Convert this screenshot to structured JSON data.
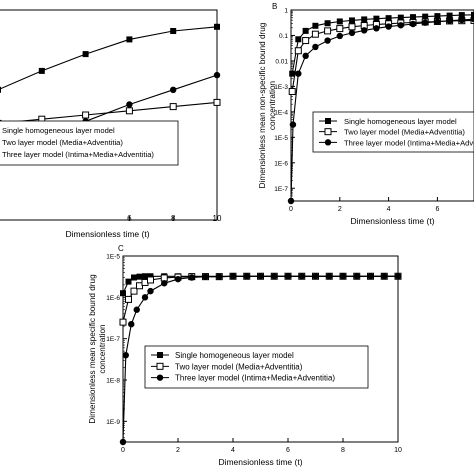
{
  "chart_data": [
    {
      "id": "A",
      "type": "line",
      "panel_label": "",
      "title": "",
      "xlabel": "Dimensionless time (t)",
      "ylabel": "",
      "xlim": [
        0,
        10
      ],
      "ylim": [
        0,
        1
      ],
      "xticks": [
        6,
        8,
        10
      ],
      "yscale": "linear",
      "legend": {
        "placement": "center-left",
        "entries": [
          "Single homogeneous layer model",
          "Two layer model (Media+Adventitia)",
          "Three layer model (Intima+Media+Adventitia)"
        ]
      },
      "series": [
        {
          "name": "Single homogeneous layer model",
          "marker": "square-filled",
          "x": [
            0,
            2,
            4,
            6,
            8,
            10
          ],
          "y": [
            0.62,
            0.71,
            0.79,
            0.86,
            0.9,
            0.92
          ]
        },
        {
          "name": "Two layer model (Media+Adventitia)",
          "marker": "square-open",
          "x": [
            0,
            2,
            4,
            6,
            8,
            10
          ],
          "y": [
            0.46,
            0.48,
            0.5,
            0.52,
            0.54,
            0.56
          ]
        },
        {
          "name": "Three layer model (Intima+Media+Adventitia)",
          "marker": "circle-filled",
          "x": [
            0,
            2,
            4,
            6,
            8,
            10
          ],
          "y": [
            0.34,
            0.4,
            0.47,
            0.55,
            0.62,
            0.69
          ]
        }
      ]
    },
    {
      "id": "B",
      "type": "line",
      "panel_label": "B",
      "title": "",
      "xlabel": "Dimensionless time (t)",
      "ylabel": "Dimensionless mean non-specific bound drug concentration",
      "xlim": [
        0,
        7.5
      ],
      "ylim_exp": [
        -7.5,
        0
      ],
      "yscale": "log",
      "xticks": [
        0,
        2,
        4,
        6
      ],
      "yticks": [
        "1",
        "0.1",
        "0.01",
        "1E-3",
        "1E-4",
        "1E-5",
        "1E-6",
        "1E-7"
      ],
      "legend": {
        "placement": "bottom-right",
        "entries": [
          "Single homogeneous layer model",
          "Two layer model (Media+Adventitia)",
          "Three layer model (Intima+Media+Adventitia)"
        ]
      },
      "series": [
        {
          "name": "Single homogeneous layer model",
          "marker": "square-filled",
          "x": [
            0.05,
            0.3,
            0.6,
            1,
            1.5,
            2,
            2.5,
            3,
            3.5,
            4,
            4.5,
            5,
            5.5,
            6,
            6.5,
            7,
            7.5
          ],
          "y_exp": [
            -2.5,
            -1.15,
            -0.82,
            -0.62,
            -0.52,
            -0.45,
            -0.41,
            -0.37,
            -0.34,
            -0.32,
            -0.3,
            -0.28,
            -0.26,
            -0.24,
            -0.22,
            -0.2,
            -0.19
          ]
        },
        {
          "name": "Two layer model (Media+Adventitia)",
          "marker": "square-open",
          "x": [
            0.05,
            0.3,
            0.6,
            1,
            1.5,
            2,
            2.5,
            3,
            3.5,
            4,
            4.5,
            5,
            5.5,
            6,
            6.5,
            7,
            7.5
          ],
          "y_exp": [
            -3.2,
            -1.6,
            -1.2,
            -0.95,
            -0.82,
            -0.73,
            -0.66,
            -0.61,
            -0.57,
            -0.54,
            -0.51,
            -0.49,
            -0.47,
            -0.45,
            -0.43,
            -0.42,
            -0.41
          ]
        },
        {
          "name": "Three layer model (Intima+Media+Adventitia)",
          "marker": "circle-filled",
          "x": [
            0,
            0.08,
            0.3,
            0.6,
            1,
            1.5,
            2,
            2.5,
            3,
            3.5,
            4,
            4.5,
            5,
            5.5,
            6,
            6.5,
            7,
            7.5
          ],
          "y_exp": [
            -7.5,
            -4.5,
            -2.5,
            -1.8,
            -1.45,
            -1.2,
            -1.02,
            -0.9,
            -0.8,
            -0.72,
            -0.65,
            -0.6,
            -0.55,
            -0.5,
            -0.46,
            -0.42,
            -0.39,
            -0.36
          ]
        }
      ]
    },
    {
      "id": "C",
      "type": "line",
      "panel_label": "C",
      "title": "",
      "xlabel": "Dimensionless time (t)",
      "ylabel": "Dimensionless mean specific bound drug concentration",
      "xlim": [
        0,
        10
      ],
      "ylim_exp": [
        -9.5,
        -5
      ],
      "yscale": "log",
      "xticks": [
        0,
        2,
        4,
        6,
        8,
        10
      ],
      "yticks": [
        "1E-5",
        "1E-6",
        "1E-7",
        "1E-8",
        "1E-9"
      ],
      "legend": {
        "placement": "bottom-left",
        "entries": [
          "Single homogeneous layer model",
          "Two layer model (Media+Adventitia)",
          "Three layer model (Intima+Media+Adventitia)"
        ]
      },
      "series": [
        {
          "name": "Single homogeneous layer model",
          "marker": "square-filled",
          "x": [
            0,
            0.2,
            0.4,
            0.6,
            0.8,
            1,
            1.5,
            2,
            2.5,
            3,
            3.5,
            4,
            4.5,
            5,
            5.5,
            6,
            6.5,
            7,
            7.5,
            8,
            8.5,
            9,
            9.5,
            10
          ],
          "y_exp": [
            -5.9,
            -5.62,
            -5.52,
            -5.5,
            -5.49,
            -5.49,
            -5.49,
            -5.49,
            -5.49,
            -5.49,
            -5.49,
            -5.49,
            -5.49,
            -5.49,
            -5.49,
            -5.49,
            -5.49,
            -5.49,
            -5.49,
            -5.49,
            -5.49,
            -5.49,
            -5.49,
            -5.49
          ]
        },
        {
          "name": "Two layer model (Media+Adventitia)",
          "marker": "square-open",
          "x": [
            0,
            0.2,
            0.4,
            0.6,
            0.8,
            1,
            1.5,
            2,
            2.5,
            3,
            3.5,
            4,
            4.5,
            5,
            5.5,
            6,
            6.5,
            7,
            7.5,
            8,
            8.5,
            9,
            9.5,
            10
          ],
          "y_exp": [
            -6.6,
            -6.05,
            -5.85,
            -5.72,
            -5.64,
            -5.58,
            -5.53,
            -5.51,
            -5.5,
            -5.5,
            -5.5,
            -5.49,
            -5.49,
            -5.49,
            -5.49,
            -5.49,
            -5.49,
            -5.49,
            -5.49,
            -5.49,
            -5.49,
            -5.49,
            -5.49,
            -5.49
          ]
        },
        {
          "name": "Three layer model (Intima+Media+Adventitia)",
          "marker": "circle-filled",
          "x": [
            0,
            0.1,
            0.3,
            0.5,
            0.8,
            1,
            1.5,
            2,
            2.5,
            3,
            3.5,
            4,
            4.5,
            5,
            5.5,
            6,
            6.5,
            7,
            7.5,
            8,
            8.5,
            9,
            9.5,
            10
          ],
          "y_exp": [
            -9.5,
            -7.4,
            -6.65,
            -6.3,
            -6.0,
            -5.85,
            -5.66,
            -5.56,
            -5.52,
            -5.5,
            -5.5,
            -5.49,
            -5.49,
            -5.49,
            -5.49,
            -5.49,
            -5.49,
            -5.49,
            -5.49,
            -5.49,
            -5.49,
            -5.49,
            -5.49,
            -5.49
          ]
        }
      ]
    }
  ]
}
